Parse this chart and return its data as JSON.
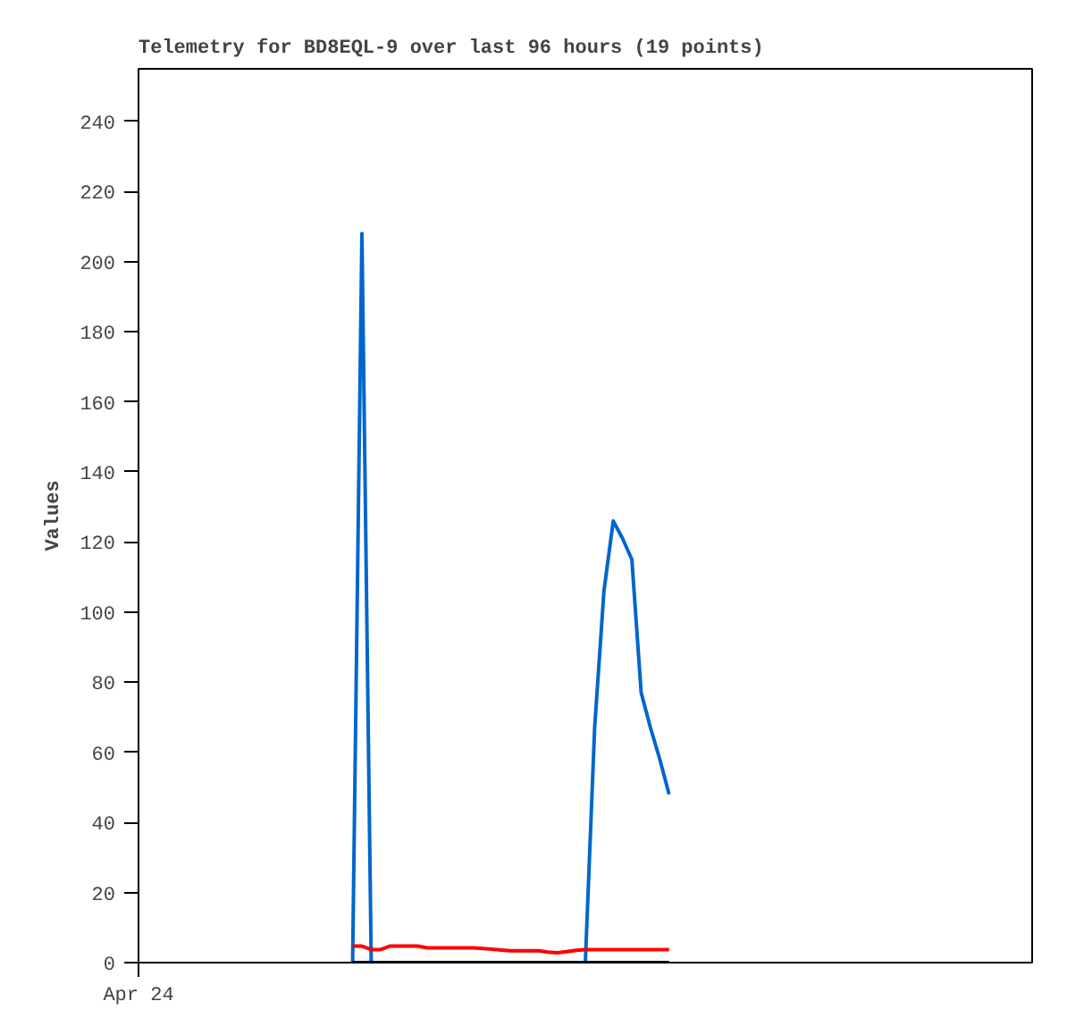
{
  "chart_data": {
    "type": "line",
    "title": "Telemetry for BD8EQL-9 over last 96 hours (19 points)",
    "ylabel": "Values",
    "categories": [
      "Apr 24",
      null,
      null,
      null,
      null,
      null,
      null,
      null,
      null,
      null,
      null,
      null,
      null,
      null,
      null,
      null,
      null,
      null,
      null,
      null,
      null,
      null,
      null,
      null,
      null,
      null,
      null,
      null,
      null,
      null,
      null,
      null,
      null,
      null,
      null,
      null,
      null,
      null,
      null,
      null,
      null,
      null,
      null,
      null,
      null,
      null,
      null,
      null,
      null,
      null,
      null,
      null,
      null,
      null,
      null,
      null,
      null,
      null,
      null,
      null,
      null,
      null,
      null,
      null,
      null,
      null,
      null,
      null,
      null,
      null,
      null,
      null,
      null,
      null,
      null,
      null,
      null,
      null,
      null,
      null,
      null,
      null,
      null,
      null,
      null,
      null,
      null,
      null,
      null,
      null,
      null,
      null,
      null,
      null,
      null,
      null,
      null
    ],
    "ylim": [
      0,
      255
    ],
    "yticks": [
      0,
      20,
      40,
      60,
      80,
      100,
      120,
      140,
      160,
      180,
      200,
      220,
      240
    ],
    "grid": false,
    "series": [
      {
        "color": "#0066cc",
        "values": [
          null,
          null,
          null,
          null,
          null,
          null,
          null,
          null,
          null,
          null,
          null,
          null,
          null,
          null,
          null,
          null,
          null,
          null,
          null,
          null,
          null,
          null,
          null,
          0,
          208,
          0,
          null,
          null,
          null,
          null,
          null,
          null,
          null,
          null,
          null,
          null,
          null,
          null,
          null,
          null,
          null,
          null,
          null,
          null,
          null,
          null,
          null,
          null,
          0,
          67,
          106,
          126,
          121,
          115,
          77,
          67,
          58,
          48,
          null,
          null,
          null,
          null,
          null,
          null,
          null,
          null,
          null,
          null,
          null,
          null,
          null,
          null,
          null,
          null,
          null,
          null,
          null,
          null,
          null,
          null,
          null,
          null,
          null,
          null,
          null,
          null,
          null,
          null,
          null,
          null,
          null,
          null,
          null,
          null,
          null,
          null,
          null
        ]
      },
      {
        "color": "#ff0000",
        "values": [
          null,
          null,
          null,
          null,
          null,
          null,
          null,
          null,
          null,
          null,
          null,
          null,
          null,
          null,
          null,
          null,
          null,
          null,
          null,
          null,
          null,
          null,
          null,
          4.7,
          4.7,
          3.7,
          3.7,
          4.7,
          4.7,
          4.7,
          4.7,
          4.2,
          4.2,
          4.2,
          4.2,
          4.2,
          4.2,
          4.0,
          3.8,
          3.6,
          3.4,
          3.4,
          3.4,
          3.4,
          3.0,
          2.8,
          3.1,
          3.5,
          3.7,
          3.7,
          3.7,
          3.7,
          3.7,
          3.7,
          3.7,
          3.7,
          3.7,
          3.7,
          null,
          null,
          null,
          null,
          null,
          null,
          null,
          null,
          null,
          null,
          null,
          null,
          null,
          null,
          null,
          null,
          null,
          null,
          null,
          null,
          null,
          null,
          null,
          null,
          null,
          null,
          null,
          null,
          null,
          null,
          null,
          null,
          null,
          null,
          null,
          null,
          null,
          null,
          null
        ]
      },
      {
        "color": "#000000",
        "values": [
          null,
          null,
          null,
          null,
          null,
          null,
          null,
          null,
          null,
          null,
          null,
          null,
          null,
          null,
          null,
          null,
          null,
          null,
          null,
          null,
          null,
          null,
          null,
          0,
          0,
          0,
          0,
          0,
          0,
          0,
          0,
          0,
          0,
          0,
          0,
          0,
          0,
          0,
          0,
          0,
          0,
          0,
          0,
          0,
          0,
          0,
          0,
          0,
          0,
          0,
          0,
          0,
          0,
          0,
          0,
          0,
          0,
          0,
          null,
          null,
          null,
          null,
          null,
          null,
          null,
          null,
          null,
          null,
          null,
          null,
          null,
          null,
          null,
          null,
          null,
          null,
          null,
          null,
          null,
          null,
          null,
          null,
          null,
          null,
          null,
          null,
          null,
          null,
          null,
          null,
          null,
          null,
          null,
          null,
          null,
          null,
          null
        ]
      }
    ]
  }
}
